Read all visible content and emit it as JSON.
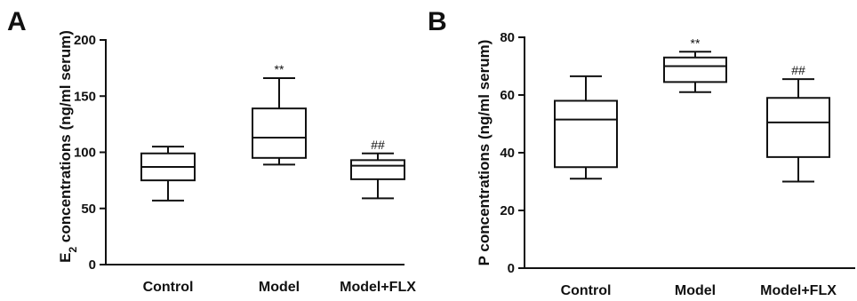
{
  "chart_data": [
    {
      "type": "box",
      "panel": "A",
      "ylabel_main": "E",
      "ylabel_sub": "2",
      "ylabel_rest": " concentrations (ng/ml serum)",
      "ylim": [
        0,
        200
      ],
      "yticks": [
        0,
        50,
        100,
        150,
        200
      ],
      "categories": [
        "Control",
        "Model",
        "Model+FLX"
      ],
      "boxes": [
        {
          "min": 57,
          "q1": 75,
          "median": 87,
          "q3": 99,
          "max": 105,
          "annotation": ""
        },
        {
          "min": 89,
          "q1": 95,
          "median": 113,
          "q3": 139,
          "max": 166,
          "annotation": "**"
        },
        {
          "min": 59,
          "q1": 76,
          "median": 88,
          "q3": 93,
          "max": 99,
          "annotation": "##"
        }
      ]
    },
    {
      "type": "box",
      "panel": "B",
      "ylabel_main": "P concentrations (ng/ml serum)",
      "ylim": [
        0,
        80
      ],
      "yticks": [
        0,
        20,
        40,
        60,
        80
      ],
      "categories": [
        "Control",
        "Model",
        "Model+FLX"
      ],
      "boxes": [
        {
          "min": 31,
          "q1": 35,
          "median": 51.5,
          "q3": 58,
          "max": 66.5,
          "annotation": ""
        },
        {
          "min": 61,
          "q1": 64.5,
          "median": 70,
          "q3": 73,
          "max": 75,
          "annotation": "**"
        },
        {
          "min": 30,
          "q1": 38.5,
          "median": 50.5,
          "q3": 59,
          "max": 65.5,
          "annotation": "##"
        }
      ]
    }
  ]
}
